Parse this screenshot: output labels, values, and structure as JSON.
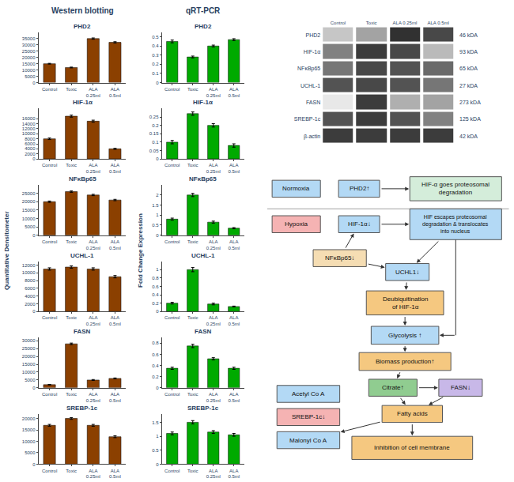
{
  "chart_data": [
    {
      "type": "bar",
      "title": "Western blotting",
      "ylabel": "Quantitative Densitometer",
      "color": "#8B4000",
      "grid": false,
      "categories": [
        "Control",
        "Toxic",
        "ALA\n0.25ml",
        "ALA\n0.5ml"
      ],
      "series": [
        {
          "name": "PHD2",
          "values": [
            15000,
            12000,
            35000,
            32000
          ],
          "yerr": [
            300,
            300,
            500,
            500
          ],
          "ylim": [
            0,
            40000
          ],
          "yticks": [
            0,
            5000,
            10000,
            15000,
            20000,
            25000,
            30000,
            35000
          ]
        },
        {
          "name": "HIF-1α",
          "values": [
            8000,
            17000,
            15000,
            4000
          ],
          "yerr": [
            300,
            400,
            400,
            200
          ],
          "ylim": [
            0,
            20000
          ],
          "yticks": [
            0,
            2000,
            4000,
            6000,
            8000,
            10000,
            12000,
            14000,
            16000
          ]
        },
        {
          "name": "NFκBp65",
          "values": [
            20000,
            26000,
            24000,
            21000
          ],
          "yerr": [
            400,
            400,
            400,
            400
          ],
          "ylim": [
            0,
            30000
          ],
          "yticks": [
            0,
            5000,
            10000,
            15000,
            20000,
            25000
          ]
        },
        {
          "name": "UCHL-1",
          "values": [
            11000,
            11500,
            11000,
            9000
          ],
          "yerr": [
            300,
            300,
            300,
            300
          ],
          "ylim": [
            0,
            13000
          ],
          "yticks": [
            0,
            2000,
            4000,
            6000,
            8000,
            10000,
            12000
          ]
        },
        {
          "name": "FASN",
          "values": [
            2000,
            28000,
            5000,
            6000
          ],
          "yerr": [
            200,
            500,
            300,
            300
          ],
          "ylim": [
            0,
            32000
          ],
          "yticks": [
            0,
            5000,
            10000,
            15000,
            20000,
            25000,
            30000
          ]
        },
        {
          "name": "SREBP-1c",
          "values": [
            17000,
            20000,
            17000,
            12000
          ],
          "yerr": [
            400,
            400,
            400,
            400
          ],
          "ylim": [
            0,
            22000
          ],
          "yticks": [
            0,
            5000,
            10000,
            15000,
            20000
          ]
        }
      ]
    },
    {
      "type": "bar",
      "title": "qRT-PCR",
      "ylabel": "Fold Change Expression",
      "color": "#00aa00",
      "grid": false,
      "categories": [
        "Control",
        "Toxic",
        "ALA\n0.25ml",
        "ALA\n0.5ml"
      ],
      "series": [
        {
          "name": "PHD2",
          "values": [
            0.45,
            0.28,
            0.4,
            0.47
          ],
          "yerr": [
            0.015,
            0.01,
            0.01,
            0.01
          ],
          "ylim": [
            0,
            0.55
          ],
          "yticks": [
            0.0,
            0.1,
            0.2,
            0.3,
            0.4,
            0.5
          ]
        },
        {
          "name": "HIF-1α",
          "values": [
            0.1,
            0.27,
            0.2,
            0.08
          ],
          "yerr": [
            0.01,
            0.01,
            0.01,
            0.01
          ],
          "ylim": [
            0,
            0.3
          ],
          "yticks": [
            0.0,
            0.05,
            0.1,
            0.15,
            0.2,
            0.25
          ]
        },
        {
          "name": "NFκBp65",
          "values": [
            0.8,
            2.0,
            0.65,
            0.35
          ],
          "yerr": [
            0.05,
            0.08,
            0.05,
            0.03
          ],
          "ylim": [
            0,
            2.5
          ],
          "yticks": [
            0.0,
            0.5,
            1.0,
            1.5,
            2.0
          ]
        },
        {
          "name": "UCHL-1",
          "values": [
            0.2,
            1.0,
            0.18,
            0.12
          ],
          "yerr": [
            0.02,
            0.05,
            0.02,
            0.01
          ],
          "ylim": [
            0,
            1.2
          ],
          "yticks": [
            0.0,
            0.2,
            0.4,
            0.6,
            0.8,
            1.0
          ]
        },
        {
          "name": "FASN",
          "values": [
            0.35,
            0.75,
            0.52,
            0.35
          ],
          "yerr": [
            0.02,
            0.03,
            0.02,
            0.02
          ],
          "ylim": [
            0,
            0.9
          ],
          "yticks": [
            0.0,
            0.2,
            0.4,
            0.6,
            0.8
          ]
        },
        {
          "name": "SREBP-1c",
          "values": [
            1.1,
            1.5,
            1.15,
            1.05
          ],
          "yerr": [
            0.05,
            0.06,
            0.05,
            0.05
          ],
          "ylim": [
            0,
            1.8
          ],
          "yticks": [
            0.0,
            0.5,
            1.0,
            1.5
          ]
        }
      ]
    },
    {
      "type": "heatmap",
      "x": [
        "Control",
        "Toxic",
        "ALA 0.25ml",
        "ALA 0.5ml"
      ],
      "y": [
        "PHD2",
        "HIF-1α",
        "NFκBp65",
        "UCHL-1",
        "FASN",
        "SREBP-1c",
        "β-actin"
      ],
      "kda": [
        "46 kDA",
        "93 kDA",
        "65 kDA",
        "27 kDA",
        "273 kDA",
        "125 kDA",
        "42 kDA"
      ],
      "values": [
        [
          0.25,
          0.4,
          0.9,
          0.8
        ],
        [
          0.55,
          0.85,
          0.8,
          0.3
        ],
        [
          0.6,
          0.8,
          0.75,
          0.65
        ],
        [
          0.75,
          0.8,
          0.75,
          0.6
        ],
        [
          0.1,
          0.85,
          0.35,
          0.4
        ],
        [
          0.75,
          0.85,
          0.75,
          0.55
        ],
        [
          0.85,
          0.85,
          0.85,
          0.85
        ]
      ]
    },
    {
      "type": "diagram",
      "nodes": [
        {
          "text": "Normoxia",
          "color": "#b3d9f5"
        },
        {
          "text": "PHD2↑",
          "color": "#b3d9f5"
        },
        {
          "text": "HIF-α goes proteosomal\ndegradation",
          "color": "#d4edda"
        },
        {
          "text": "Hypoxia",
          "color": "#f5b3b3"
        },
        {
          "text": "HIF-1α↓",
          "color": "#b3d9f5"
        },
        {
          "text": "HIF escapes proteosomal\ndegradation & translocates\ninto nucleus",
          "color": "#b3d9f5"
        },
        {
          "text": "NFκBp65↓",
          "color": "#f5ddb3"
        },
        {
          "text": "UCHL1↓",
          "color": "#b3d9f5"
        },
        {
          "text": "Deubiquitination\nof HIF-1α",
          "color": "#f5c880"
        },
        {
          "text": "Glycolysis ↑",
          "color": "#b3d9f5"
        },
        {
          "text": "Biomass production↑",
          "color": "#f5c880"
        },
        {
          "text": "Citrate↑",
          "color": "#90cc90"
        },
        {
          "text": "FASN↓",
          "color": "#c8b8e8"
        },
        {
          "text": "Fatty acids",
          "color": "#f5c880"
        },
        {
          "text": "Acetyl Co A",
          "color": "#b3d9f5"
        },
        {
          "text": "SREBP-1c↓",
          "color": "#f5b3b3"
        },
        {
          "text": "Malonyl Co A",
          "color": "#b3d9f5"
        },
        {
          "text": "Inhibition of cell membrane",
          "color": "#f5c880"
        }
      ],
      "edges": [
        [
          1,
          2
        ],
        [
          4,
          5
        ],
        [
          6,
          4
        ],
        [
          6,
          7
        ],
        [
          5,
          7
        ],
        [
          7,
          8
        ],
        [
          8,
          9
        ],
        [
          5,
          9
        ],
        [
          9,
          10
        ],
        [
          10,
          11
        ],
        [
          11,
          13
        ],
        [
          11,
          12
        ],
        [
          12,
          13
        ],
        [
          13,
          17
        ],
        [
          13,
          16
        ]
      ]
    }
  ]
}
